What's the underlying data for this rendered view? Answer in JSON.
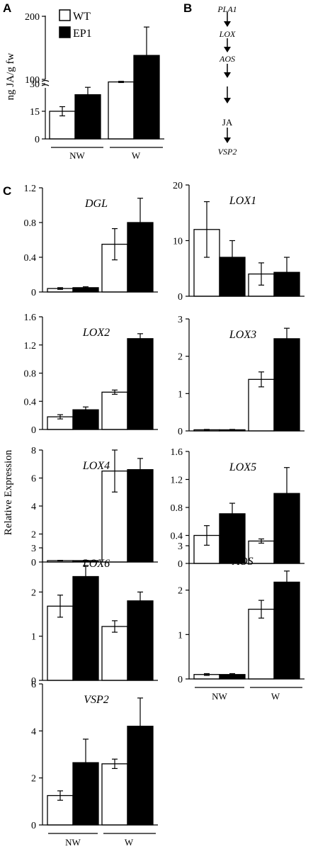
{
  "panel_labels": {
    "a": "A",
    "b": "B",
    "c": "C"
  },
  "panel_a": {
    "ylabel": "ng JA/g fw",
    "ticks": [
      "0",
      "15",
      "30",
      "100",
      "200"
    ],
    "legend": [
      "WT",
      "EP1"
    ]
  },
  "panel_b": {
    "pathway": [
      "PLA1",
      "LOX",
      "AOS",
      "",
      "",
      "JA",
      "VSP2"
    ]
  },
  "panel_c": {
    "ylabel": "Relative Expression"
  },
  "groups": [
    "NW",
    "W"
  ],
  "colors": {
    "wt": "#ffffff",
    "ep1": "#000000",
    "axis": "#000000"
  },
  "chart_data": [
    {
      "type": "bar",
      "panel": "A",
      "ylabel": "ng JA/g fw",
      "categories": [
        "NW",
        "W"
      ],
      "y_axis_break": [
        30,
        100
      ],
      "yticks": [
        0,
        15,
        30,
        100,
        200
      ],
      "series": [
        {
          "name": "WT",
          "values": [
            15,
            58
          ],
          "errors": [
            2.5,
            10
          ]
        },
        {
          "name": "EP1",
          "values": [
            24,
            138
          ],
          "errors": [
            4,
            45
          ]
        }
      ]
    },
    {
      "type": "bar",
      "panel": "C",
      "gene": "DGL",
      "categories": [
        "NW",
        "W"
      ],
      "ylim": [
        0,
        1.2
      ],
      "yticks": [
        "0",
        "0.4",
        "0.8",
        "1.2"
      ],
      "series": [
        {
          "name": "WT",
          "values": [
            0.04,
            0.55
          ],
          "errors": [
            0.01,
            0.18
          ]
        },
        {
          "name": "EP1",
          "values": [
            0.05,
            0.8
          ],
          "errors": [
            0.01,
            0.28
          ]
        }
      ]
    },
    {
      "type": "bar",
      "panel": "C",
      "gene": "LOX1",
      "categories": [
        "NW",
        "W"
      ],
      "ylim": [
        0,
        20
      ],
      "yticks": [
        "0",
        "10",
        "20"
      ],
      "series": [
        {
          "name": "WT",
          "values": [
            12,
            4
          ],
          "errors": [
            5,
            2
          ]
        },
        {
          "name": "EP1",
          "values": [
            7,
            4.3
          ],
          "errors": [
            3,
            2.7
          ]
        }
      ]
    },
    {
      "type": "bar",
      "panel": "C",
      "gene": "LOX2",
      "categories": [
        "NW",
        "W"
      ],
      "ylim": [
        0,
        1.6
      ],
      "yticks": [
        "0",
        "0.4",
        "0.8",
        "1.2",
        "1.6"
      ],
      "series": [
        {
          "name": "WT",
          "values": [
            0.18,
            0.53
          ],
          "errors": [
            0.03,
            0.03
          ]
        },
        {
          "name": "EP1",
          "values": [
            0.28,
            1.29
          ],
          "errors": [
            0.04,
            0.07
          ]
        }
      ]
    },
    {
      "type": "bar",
      "panel": "C",
      "gene": "LOX3",
      "categories": [
        "NW",
        "W"
      ],
      "ylim": [
        0,
        3
      ],
      "yticks": [
        "0",
        "1",
        "2",
        "3"
      ],
      "series": [
        {
          "name": "WT",
          "values": [
            0.03,
            1.38
          ],
          "errors": [
            0.01,
            0.2
          ]
        },
        {
          "name": "EP1",
          "values": [
            0.03,
            2.47
          ],
          "errors": [
            0.01,
            0.28
          ]
        }
      ]
    },
    {
      "type": "bar",
      "panel": "C",
      "gene": "LOX4",
      "categories": [
        "NW",
        "W"
      ],
      "ylim": [
        0,
        8
      ],
      "yticks": [
        "0",
        "2",
        "4",
        "6",
        "8"
      ],
      "series": [
        {
          "name": "WT",
          "values": [
            0.1,
            6.5
          ],
          "errors": [
            0.02,
            1.5
          ]
        },
        {
          "name": "EP1",
          "values": [
            0.1,
            6.6
          ],
          "errors": [
            0.02,
            0.8
          ]
        }
      ]
    },
    {
      "type": "bar",
      "panel": "C",
      "gene": "LOX5",
      "categories": [
        "NW",
        "W"
      ],
      "ylim": [
        0,
        1.6
      ],
      "yticks": [
        "0",
        "0.4",
        "0.8",
        "1.2",
        "1.6"
      ],
      "series": [
        {
          "name": "WT",
          "values": [
            0.4,
            0.32
          ],
          "errors": [
            0.14,
            0.03
          ]
        },
        {
          "name": "EP1",
          "values": [
            0.71,
            1.0
          ],
          "errors": [
            0.15,
            0.37
          ]
        }
      ]
    },
    {
      "type": "bar",
      "panel": "C",
      "gene": "LOX6",
      "categories": [
        "NW",
        "W"
      ],
      "ylim": [
        0,
        3
      ],
      "yticks": [
        "0",
        "1",
        "2",
        "3"
      ],
      "series": [
        {
          "name": "WT",
          "values": [
            1.68,
            1.22
          ],
          "errors": [
            0.25,
            0.13
          ]
        },
        {
          "name": "EP1",
          "values": [
            2.35,
            1.8
          ],
          "errors": [
            0.25,
            0.2
          ]
        }
      ]
    },
    {
      "type": "bar",
      "panel": "C",
      "gene": "AOS",
      "categories": [
        "NW",
        "W"
      ],
      "ylim": [
        0,
        3
      ],
      "yticks": [
        "0",
        "1",
        "2",
        "3"
      ],
      "series": [
        {
          "name": "WT",
          "values": [
            0.1,
            1.57
          ],
          "errors": [
            0.02,
            0.2
          ]
        },
        {
          "name": "EP1",
          "values": [
            0.1,
            2.18
          ],
          "errors": [
            0.02,
            0.25
          ]
        }
      ]
    },
    {
      "type": "bar",
      "panel": "C",
      "gene": "VSP2",
      "categories": [
        "NW",
        "W"
      ],
      "ylim": [
        0,
        6
      ],
      "yticks": [
        "0",
        "2",
        "4",
        "6"
      ],
      "series": [
        {
          "name": "WT",
          "values": [
            1.25,
            2.6
          ],
          "errors": [
            0.2,
            0.2
          ]
        },
        {
          "name": "EP1",
          "values": [
            2.65,
            4.2
          ],
          "errors": [
            1.0,
            1.2
          ]
        }
      ]
    }
  ]
}
